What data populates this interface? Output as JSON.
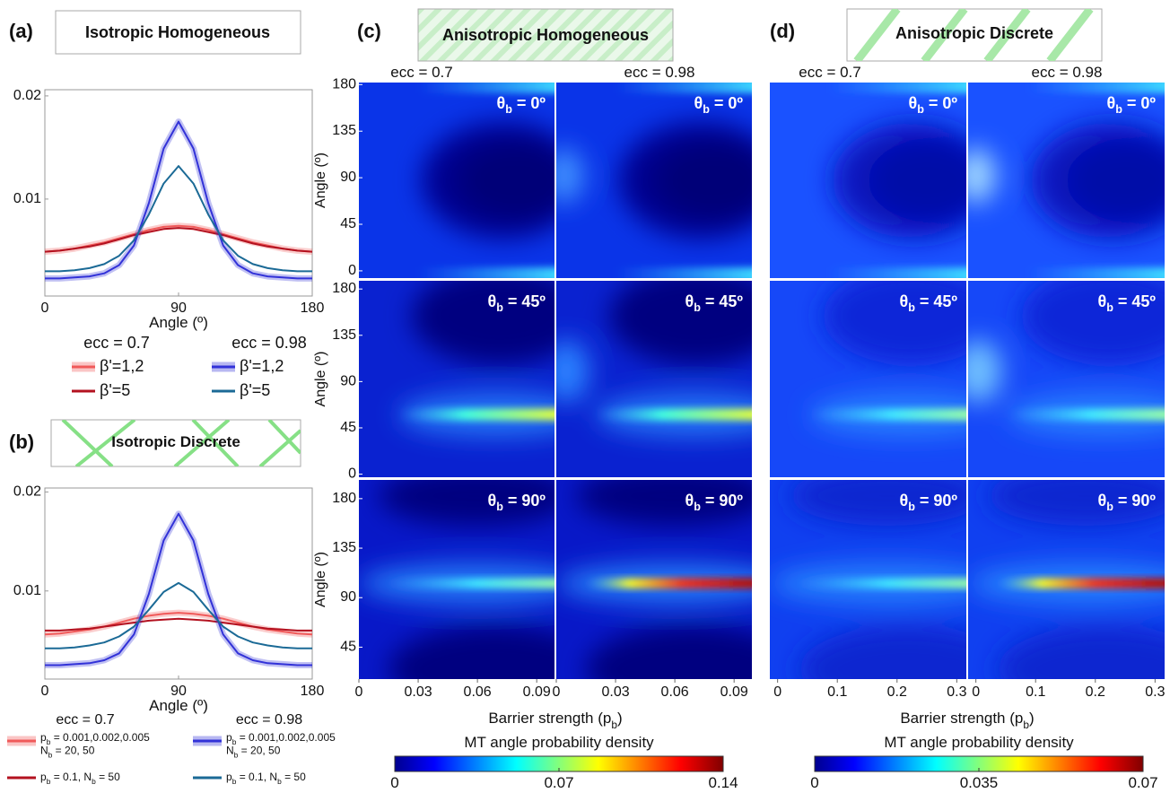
{
  "chart_data": [
    {
      "type": "line",
      "panel": "(a)",
      "title": "Isotropic Homogeneous",
      "xlabel": "Angle (º)",
      "x": [
        0,
        10,
        20,
        30,
        40,
        50,
        60,
        70,
        80,
        90,
        100,
        110,
        120,
        130,
        140,
        150,
        160,
        170,
        180
      ],
      "xlim": [
        0,
        180
      ],
      "xticks": [
        0,
        90,
        180
      ],
      "ylim": [
        0.0006,
        0.0206
      ],
      "yticks": [
        0.01,
        0.02
      ],
      "groups": [
        {
          "title": "ecc = 0.7",
          "series": [
            {
              "name": "β'=1,2",
              "color": "#f05a5a",
              "band": true,
              "values": [
                0.0049,
                0.005,
                0.0052,
                0.0055,
                0.0058,
                0.0062,
                0.0066,
                0.007,
                0.0073,
                0.0074,
                0.0073,
                0.007,
                0.0066,
                0.0062,
                0.0058,
                0.0055,
                0.0052,
                0.005,
                0.0049
              ]
            },
            {
              "name": "β'=5",
              "color": "#b3111f",
              "band": false,
              "values": [
                0.0049,
                0.005,
                0.0052,
                0.0054,
                0.0057,
                0.0061,
                0.0065,
                0.0068,
                0.0071,
                0.0072,
                0.0071,
                0.0068,
                0.0065,
                0.0061,
                0.0057,
                0.0054,
                0.0052,
                0.005,
                0.0049
              ]
            }
          ]
        },
        {
          "title": "ecc = 0.98",
          "series": [
            {
              "name": "β'=1,2",
              "color": "#3232d8",
              "band": true,
              "values": [
                0.0023,
                0.0023,
                0.0024,
                0.0025,
                0.0028,
                0.0036,
                0.0055,
                0.0096,
                0.0149,
                0.0175,
                0.0149,
                0.0096,
                0.0055,
                0.0036,
                0.0028,
                0.0025,
                0.0024,
                0.0023,
                0.0023
              ]
            },
            {
              "name": "β'=5",
              "color": "#1b6a96",
              "band": false,
              "values": [
                0.003,
                0.003,
                0.0031,
                0.0033,
                0.0037,
                0.0045,
                0.006,
                0.0085,
                0.0115,
                0.0132,
                0.0115,
                0.0085,
                0.006,
                0.0045,
                0.0037,
                0.0033,
                0.0031,
                0.003,
                0.003
              ]
            }
          ]
        }
      ]
    },
    {
      "type": "line",
      "panel": "(b)",
      "title": "Isotropic Discrete",
      "xlabel": "Angle (º)",
      "x": [
        0,
        10,
        20,
        30,
        40,
        50,
        60,
        70,
        80,
        90,
        100,
        110,
        120,
        130,
        140,
        150,
        160,
        170,
        180
      ],
      "xlim": [
        0,
        180
      ],
      "xticks": [
        0,
        90,
        180
      ],
      "ylim": [
        0.0011,
        0.0204
      ],
      "yticks": [
        0.01,
        0.02
      ],
      "groups": [
        {
          "title": "ecc = 0.7",
          "series": [
            {
              "name": "p_b = 0.001,0.002,0.005\nN_b = 20, 50",
              "color": "#f05a5a",
              "band": true,
              "values": [
                0.0056,
                0.0057,
                0.0059,
                0.0061,
                0.0064,
                0.0068,
                0.0072,
                0.0075,
                0.0077,
                0.0078,
                0.0077,
                0.0075,
                0.0072,
                0.0068,
                0.0064,
                0.0061,
                0.0059,
                0.0057,
                0.0056
              ]
            },
            {
              "name": "p_b = 0.1, N_b = 50",
              "color": "#b3111f",
              "band": false,
              "values": [
                0.006,
                0.006,
                0.0061,
                0.0062,
                0.0064,
                0.0066,
                0.0068,
                0.007,
                0.0071,
                0.0072,
                0.0071,
                0.007,
                0.0068,
                0.0066,
                0.0064,
                0.0062,
                0.0061,
                0.006,
                0.006
              ]
            }
          ]
        },
        {
          "title": "ecc = 0.98",
          "series": [
            {
              "name": "p_b = 0.001,0.002,0.005\nN_b = 20, 50",
              "color": "#3232d8",
              "band": true,
              "values": [
                0.0025,
                0.0025,
                0.0026,
                0.0027,
                0.003,
                0.0037,
                0.0056,
                0.0097,
                0.0151,
                0.0178,
                0.0151,
                0.0097,
                0.0056,
                0.0037,
                0.003,
                0.0027,
                0.0026,
                0.0025,
                0.0025
              ]
            },
            {
              "name": "p_b = 0.1, N_b = 50",
              "color": "#1b6a96",
              "band": false,
              "values": [
                0.0042,
                0.0042,
                0.0043,
                0.0045,
                0.0048,
                0.0054,
                0.0064,
                0.0081,
                0.0099,
                0.0108,
                0.0099,
                0.0081,
                0.0064,
                0.0054,
                0.0048,
                0.0045,
                0.0043,
                0.0042,
                0.0042
              ]
            }
          ]
        }
      ]
    },
    {
      "type": "heatmap",
      "panel": "(c)",
      "title": "Anisotropic Homogeneous",
      "columns": [
        "ecc = 0.7",
        "ecc = 0.98"
      ],
      "ylabel": "Angle (º)",
      "xlabel": "Barrier strength (p_b)",
      "xlim": [
        0,
        0.099
      ],
      "xticks": [
        0,
        0.03,
        0.06,
        0.09
      ],
      "rows": [
        {
          "label": "θ_b = 0º",
          "ylim": [
            -7,
            182
          ],
          "yticks": [
            0,
            45,
            90,
            135,
            180
          ]
        },
        {
          "label": "θ_b = 45º",
          "ylim": [
            -3,
            188
          ],
          "yticks": [
            0,
            45,
            90,
            135,
            180
          ]
        },
        {
          "label": "θ_b = 90º",
          "ylim": [
            16,
            197
          ],
          "yticks": [
            45,
            90,
            135,
            180
          ]
        }
      ],
      "colorbar": {
        "label": "MT angle probability density",
        "lim": [
          0,
          0.14
        ],
        "ticks": [
          0,
          0.07,
          0.14
        ]
      }
    },
    {
      "type": "heatmap",
      "panel": "(d)",
      "title": "Anisotropic Discrete",
      "columns": [
        "ecc = 0.7",
        "ecc = 0.98"
      ],
      "xlabel": "Barrier strength (p_b)",
      "xlim": [
        -0.013,
        0.316
      ],
      "xticks": [
        0,
        0.1,
        0.2,
        0.3
      ],
      "rows": [
        {
          "label": "θ_b = 0º",
          "ylim": [
            -7,
            182
          ]
        },
        {
          "label": "θ_b = 45º",
          "ylim": [
            -3,
            188
          ]
        },
        {
          "label": "θ_b = 90º",
          "ylim": [
            16,
            197
          ]
        }
      ],
      "colorbar": {
        "label": "MT angle probability density",
        "lim": [
          0,
          0.07
        ],
        "ticks": [
          0,
          0.035,
          0.07
        ]
      }
    }
  ]
}
